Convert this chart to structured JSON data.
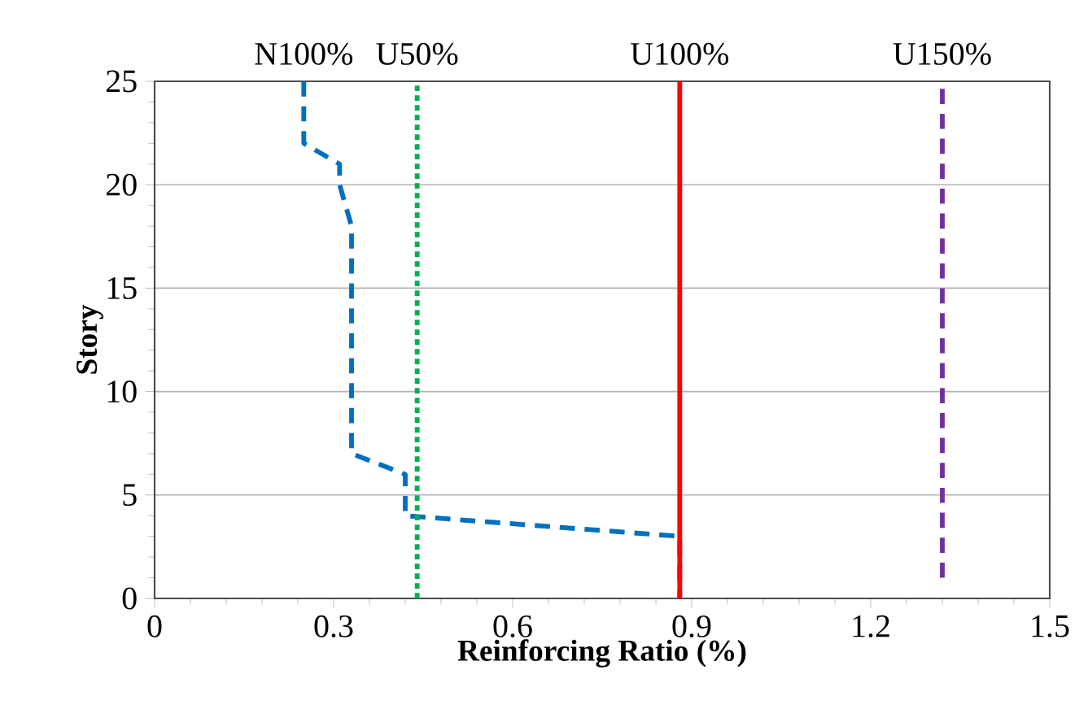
{
  "chart_data": {
    "type": "line",
    "xlabel": "Reinforcing Ratio (%)",
    "ylabel": "Story",
    "xlim": [
      0,
      1.5
    ],
    "xticks": [
      0,
      0.3,
      0.6,
      0.9,
      1.2,
      1.5
    ],
    "ylim": [
      0,
      25
    ],
    "yticks": [
      0,
      5,
      10,
      15,
      20,
      25
    ],
    "grid": "y",
    "marker": "none",
    "series": [
      {
        "name": "N100%",
        "color": "#0070c0",
        "line_style": "dashed",
        "x": [
          0.25,
          0.25,
          0.31,
          0.31,
          0.33,
          0.33,
          0.42,
          0.42,
          0.88,
          0.88
        ],
        "values": [
          25,
          22,
          21,
          20,
          18,
          7,
          6,
          4,
          3,
          0
        ]
      },
      {
        "name": "U50%",
        "color": "#00b050",
        "line_style": "dotted",
        "x": [
          0.44,
          0.44
        ],
        "values": [
          0,
          25
        ]
      },
      {
        "name": "U100%",
        "color": "#ff0000",
        "line_style": "solid",
        "x": [
          0.88,
          0.88
        ],
        "values": [
          0,
          25
        ]
      },
      {
        "name": "U150%",
        "color": "#7030a0",
        "line_style": "dashed",
        "x": [
          1.32,
          1.32
        ],
        "values": [
          1,
          25
        ]
      }
    ]
  }
}
